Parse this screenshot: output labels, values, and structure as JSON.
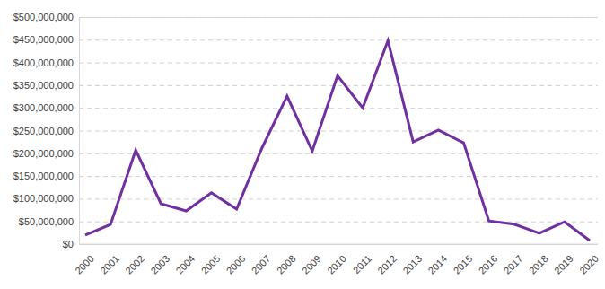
{
  "chart_data": {
    "type": "line",
    "categories": [
      "2000",
      "2001",
      "2002",
      "2003",
      "2004",
      "2005",
      "2006",
      "2007",
      "2008",
      "2009",
      "2010",
      "2011",
      "2012",
      "2013",
      "2014",
      "2015",
      "2016",
      "2017",
      "2018",
      "2019",
      "2020"
    ],
    "values": [
      20000000,
      43000000,
      207000000,
      89000000,
      73000000,
      113000000,
      77000000,
      211000000,
      326000000,
      205000000,
      371000000,
      300000000,
      448000000,
      225000000,
      251000000,
      223000000,
      51000000,
      44000000,
      24000000,
      49000000,
      8000000
    ],
    "color": "#7030a0",
    "ylim": [
      0,
      500000000
    ],
    "yticks": [
      {
        "value": 0,
        "label": "$0"
      },
      {
        "value": 50000000,
        "label": "$50,000,000"
      },
      {
        "value": 100000000,
        "label": "$100,000,000"
      },
      {
        "value": 150000000,
        "label": "$150,000,000"
      },
      {
        "value": 200000000,
        "label": "$200,000,000"
      },
      {
        "value": 250000000,
        "label": "$250,000,000"
      },
      {
        "value": 300000000,
        "label": "$300,000,000"
      },
      {
        "value": 350000000,
        "label": "$350,000,000"
      },
      {
        "value": 400000000,
        "label": "$400,000,000"
      },
      {
        "value": 450000000,
        "label": "$450,000,000"
      },
      {
        "value": 500000000,
        "label": "$500,000,000"
      }
    ],
    "grid": true
  }
}
